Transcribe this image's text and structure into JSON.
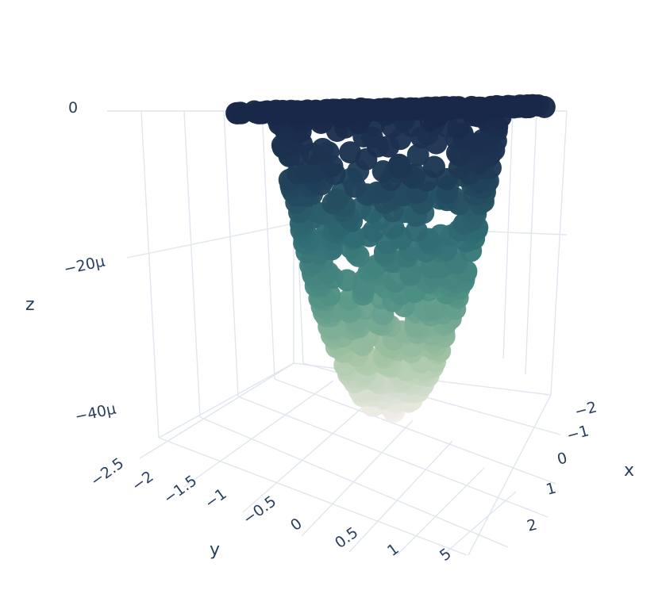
{
  "chart_data": {
    "type": "scatter3d",
    "title": "",
    "xlabel": "x",
    "ylabel": "y",
    "zlabel": "z",
    "x_ticks": [
      "−2",
      "−1",
      "0",
      "1",
      "2"
    ],
    "y_ticks": [
      "−2.5",
      "−2",
      "−1.5",
      "−1",
      "−0.5",
      "0",
      "0.5",
      "1",
      "5"
    ],
    "z_ticks": [
      "0",
      "−20μ",
      "−40μ"
    ],
    "xlim": [
      -2.2,
      2.2
    ],
    "ylim": [
      -2.5,
      5
    ],
    "zlim": [
      -4.5e-05,
      2e-06
    ],
    "z_colorscale": [
      "#f5efeb",
      "#a3c4a4",
      "#4d9084",
      "#2f6b73",
      "#1e3a55",
      "#1a2849"
    ],
    "marker_color_top": "#1a2849",
    "description_of_points": "Paraboloid-shaped cloud of markers; surface bowl with minimum near -45μ at centre, rim flattened to z=0.",
    "points_sampled": [
      {
        "x": 0,
        "y": 0,
        "z": -4.5e-05
      },
      {
        "x": 0.5,
        "y": 0.5,
        "z": -3.6e-05
      },
      {
        "x": -0.5,
        "y": 0.5,
        "z": -3.6e-05
      },
      {
        "x": 0.8,
        "y": -0.8,
        "z": -2.5e-05
      },
      {
        "x": -1.0,
        "y": 1.0,
        "z": -1e-05
      },
      {
        "x": 1.2,
        "y": -0.3,
        "z": -1.2e-05
      },
      {
        "x": -1.5,
        "y": 0,
        "z": 0
      },
      {
        "x": 1.5,
        "y": 0,
        "z": 0
      },
      {
        "x": 0,
        "y": 2,
        "z": 0
      },
      {
        "x": 0,
        "y": -2,
        "z": 0
      }
    ]
  }
}
